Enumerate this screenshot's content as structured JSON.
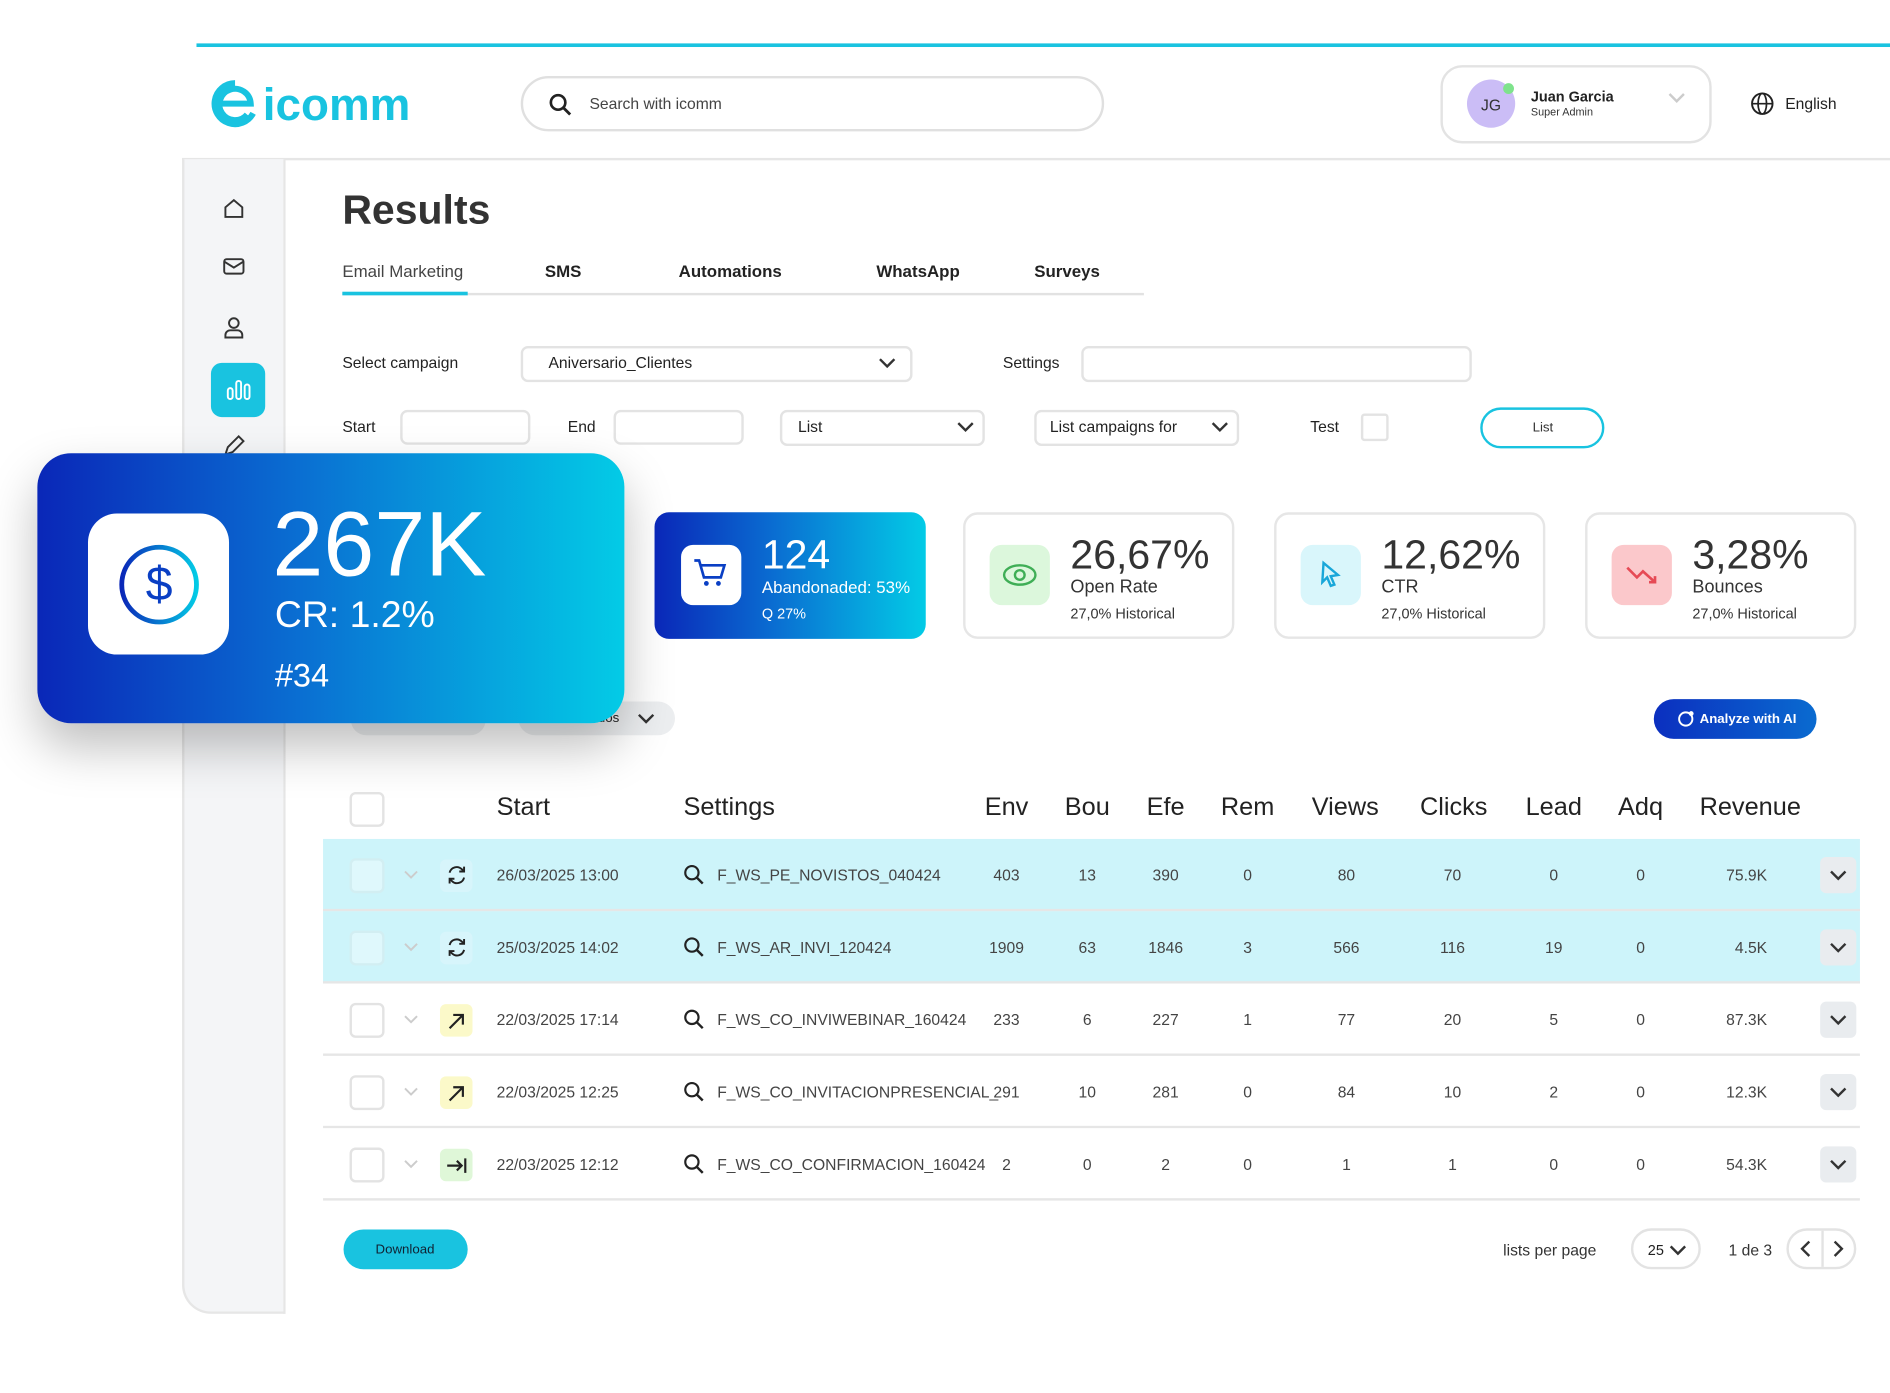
{
  "header": {
    "logo": "icomm",
    "search_placeholder": "Search with icomm",
    "user_initials": "JG",
    "user_name": "Juan Garcia",
    "user_role": "Super Admin",
    "language": "English"
  },
  "page": {
    "title": "Results",
    "tabs": [
      "Email Marketing",
      "SMS",
      "Automations",
      "WhatsApp",
      "Surveys"
    ]
  },
  "filters": {
    "select_campaign_label": "Select campaign",
    "campaign": "Aniversario_Clientes",
    "settings_label": "Settings",
    "start_label": "Start",
    "end_label": "End",
    "list_select": "List",
    "list_campaigns_for": "List campaigns for",
    "test_label": "Test",
    "list_button": "List"
  },
  "highlight_card": {
    "value": "267K",
    "cr": "CR: 1.2%",
    "rank": "#34"
  },
  "stats": [
    {
      "value": "124",
      "label": "Abandonaded: 53%",
      "note": "Q 27%"
    },
    {
      "value": "26,67%",
      "label": "Open Rate",
      "note": "27,0% Historical"
    },
    {
      "value": "12,62%",
      "label": "CTR",
      "note": "27,0% Historical"
    },
    {
      "value": "3,28%",
      "label": "Bounces",
      "note": "27,0% Historical"
    }
  ],
  "hidden_dropdown": "uos",
  "analyze_button": "Analyze with AI",
  "table": {
    "columns": [
      "Start",
      "Settings",
      "Env",
      "Bou",
      "Efe",
      "Rem",
      "Views",
      "Clicks",
      "Lead",
      "Adq",
      "Revenue"
    ],
    "rows": [
      [
        "26/03/2025 13:00",
        "F_WS_PE_NOVISTOS_040424",
        "403",
        "13",
        "390",
        "0",
        "80",
        "70",
        "0",
        "0",
        "75.9K"
      ],
      [
        "25/03/2025 14:02",
        "F_WS_AR_INVI_120424",
        "1909",
        "63",
        "1846",
        "3",
        "566",
        "116",
        "19",
        "0",
        "4.5K"
      ],
      [
        "22/03/2025 17:14",
        "F_WS_CO_INVIWEBINAR_160424",
        "233",
        "6",
        "227",
        "1",
        "77",
        "20",
        "5",
        "0",
        "87.3K"
      ],
      [
        "22/03/2025 12:25",
        "F_WS_CO_INVITACIONPRESENCIAL_",
        "291",
        "10",
        "281",
        "0",
        "84",
        "10",
        "2",
        "0",
        "12.3K"
      ],
      [
        "22/03/2025 12:12",
        "F_WS_CO_CONFIRMACION_160424",
        "2",
        "0",
        "2",
        "0",
        "1",
        "1",
        "0",
        "0",
        "54.3K"
      ]
    ]
  },
  "footer": {
    "download": "Download",
    "per_page_label": "lists per page",
    "per_page": "25",
    "pagination": "1 de 3"
  }
}
